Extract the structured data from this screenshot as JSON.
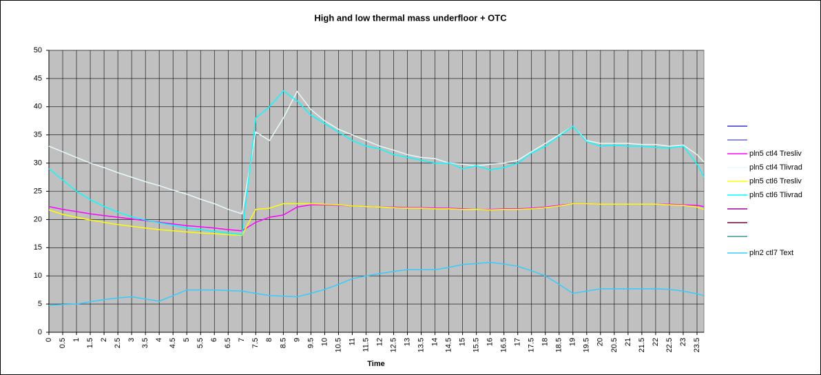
{
  "chart_data": {
    "type": "line",
    "title": "High and low thermal mass underfloor + OTC",
    "x_label": "Time",
    "x": [
      0,
      0.5,
      1,
      1.5,
      2,
      2.5,
      3,
      3.5,
      4,
      4.5,
      5,
      5.5,
      6,
      6.5,
      7,
      7.5,
      8,
      8.5,
      9,
      9.5,
      10,
      10.5,
      11,
      11.5,
      12,
      12.5,
      13,
      13.5,
      14,
      14.5,
      15,
      15.5,
      16,
      16.5,
      17,
      17.5,
      18,
      18.5,
      19,
      19.5,
      20,
      20.5,
      21,
      21.5,
      22,
      22.5,
      23,
      23.5,
      23.75
    ],
    "xlim": [
      0,
      23.75
    ],
    "xticks": [
      0,
      0.5,
      1,
      1.5,
      2,
      2.5,
      3,
      3.5,
      4,
      4.5,
      5,
      5.5,
      6,
      6.5,
      7,
      7.5,
      8,
      8.5,
      9,
      9.5,
      10,
      10.5,
      11,
      11.5,
      12,
      12.5,
      13,
      13.5,
      14,
      14.5,
      15,
      15.5,
      16,
      16.5,
      17,
      17.5,
      18,
      18.5,
      19,
      19.5,
      20,
      20.5,
      21,
      21.5,
      22,
      22.5,
      23,
      23.5
    ],
    "ylim": [
      0,
      50
    ],
    "yticks": [
      0,
      5,
      10,
      15,
      20,
      25,
      30,
      35,
      40,
      45,
      50
    ],
    "grid": true,
    "legend": "right",
    "series": [
      {
        "color": "#3333cc"
      },
      {
        "color": "#6666cc"
      },
      {
        "name": "pln5 ctl4 Tresliv",
        "color": "#ff00ff",
        "values": [
          22.3,
          21.8,
          21.4,
          21,
          20.7,
          20.4,
          20.1,
          19.8,
          19.5,
          19.2,
          18.9,
          18.7,
          18.5,
          18.2,
          18,
          19.5,
          20.4,
          20.8,
          22.2,
          22.6,
          22.6,
          22.5,
          22.4,
          22.3,
          22.2,
          22.2,
          22.1,
          22.1,
          22,
          22,
          21.9,
          21.8,
          21.8,
          21.9,
          21.9,
          22,
          22.2,
          22.5,
          22.8,
          22.8,
          22.7,
          22.7,
          22.7,
          22.7,
          22.7,
          22.7,
          22.6,
          22.5,
          22.3
        ]
      },
      {
        "name": "pln5 ctl4 Tlivrad",
        "color": "#e6fbfb",
        "values": [
          33,
          32,
          31,
          30,
          29.2,
          28.3,
          27.5,
          26.7,
          26,
          25.2,
          24.5,
          23.6,
          22.8,
          21.8,
          21,
          35.5,
          34,
          38,
          42.7,
          39.5,
          37.5,
          36,
          35,
          34,
          33,
          32.3,
          31.5,
          31,
          30.8,
          30,
          29.8,
          29.5,
          29.8,
          30,
          30.5,
          32,
          33.5,
          35,
          36.5,
          34,
          33.5,
          33.5,
          33.5,
          33.3,
          33.3,
          33,
          33.2,
          31.5,
          30.2
        ]
      },
      {
        "name": "pln5 ctl6 Tresliv",
        "color": "#ffff00",
        "values": [
          21.7,
          20.9,
          20.4,
          19.9,
          19.5,
          19.1,
          18.8,
          18.5,
          18.2,
          18,
          17.8,
          17.6,
          17.5,
          17.3,
          17.2,
          21.8,
          22,
          22.8,
          22.8,
          22.8,
          22.7,
          22.6,
          22.4,
          22.3,
          22.2,
          22.1,
          22,
          22,
          21.9,
          21.9,
          21.8,
          21.8,
          21.7,
          21.8,
          21.8,
          21.9,
          22.1,
          22.4,
          22.8,
          22.8,
          22.7,
          22.7,
          22.7,
          22.7,
          22.7,
          22.6,
          22.5,
          22.2,
          21.8
        ]
      },
      {
        "name": "pln5 ctl6 Tlivrad",
        "color": "#00ffff",
        "values": [
          29,
          27,
          25,
          23.5,
          22.3,
          21.3,
          20.5,
          19.9,
          19.4,
          19,
          18.5,
          18.2,
          17.9,
          17.6,
          17.3,
          38,
          40,
          42.8,
          41,
          38.5,
          37,
          35.5,
          34,
          33,
          32.5,
          31.5,
          31,
          30.5,
          30,
          30,
          29,
          29.5,
          28.8,
          29.2,
          30,
          31.8,
          33,
          34.8,
          36.5,
          33.8,
          33,
          33.2,
          33,
          33,
          32.8,
          32.7,
          33,
          29.8,
          27.5
        ]
      },
      {
        "color": "#990099"
      },
      {
        "color": "#660033"
      },
      {
        "color": "#339999"
      },
      {
        "name": "pln2 ctl7 Text",
        "color": "#33ccff",
        "values": [
          4.8,
          4.9,
          5,
          5.4,
          5.8,
          6.1,
          6.3,
          5.9,
          5.5,
          6.5,
          7.5,
          7.5,
          7.5,
          7.4,
          7.3,
          6.9,
          6.5,
          6.4,
          6.3,
          6.9,
          7.6,
          8.5,
          9.5,
          10,
          10.4,
          10.8,
          11.1,
          11.1,
          11.1,
          11.5,
          12,
          12.2,
          12.4,
          12.1,
          11.7,
          10.9,
          10,
          8.5,
          6.9,
          7.3,
          7.7,
          7.7,
          7.7,
          7.7,
          7.7,
          7.6,
          7.3,
          6.8,
          6.5
        ]
      }
    ]
  }
}
